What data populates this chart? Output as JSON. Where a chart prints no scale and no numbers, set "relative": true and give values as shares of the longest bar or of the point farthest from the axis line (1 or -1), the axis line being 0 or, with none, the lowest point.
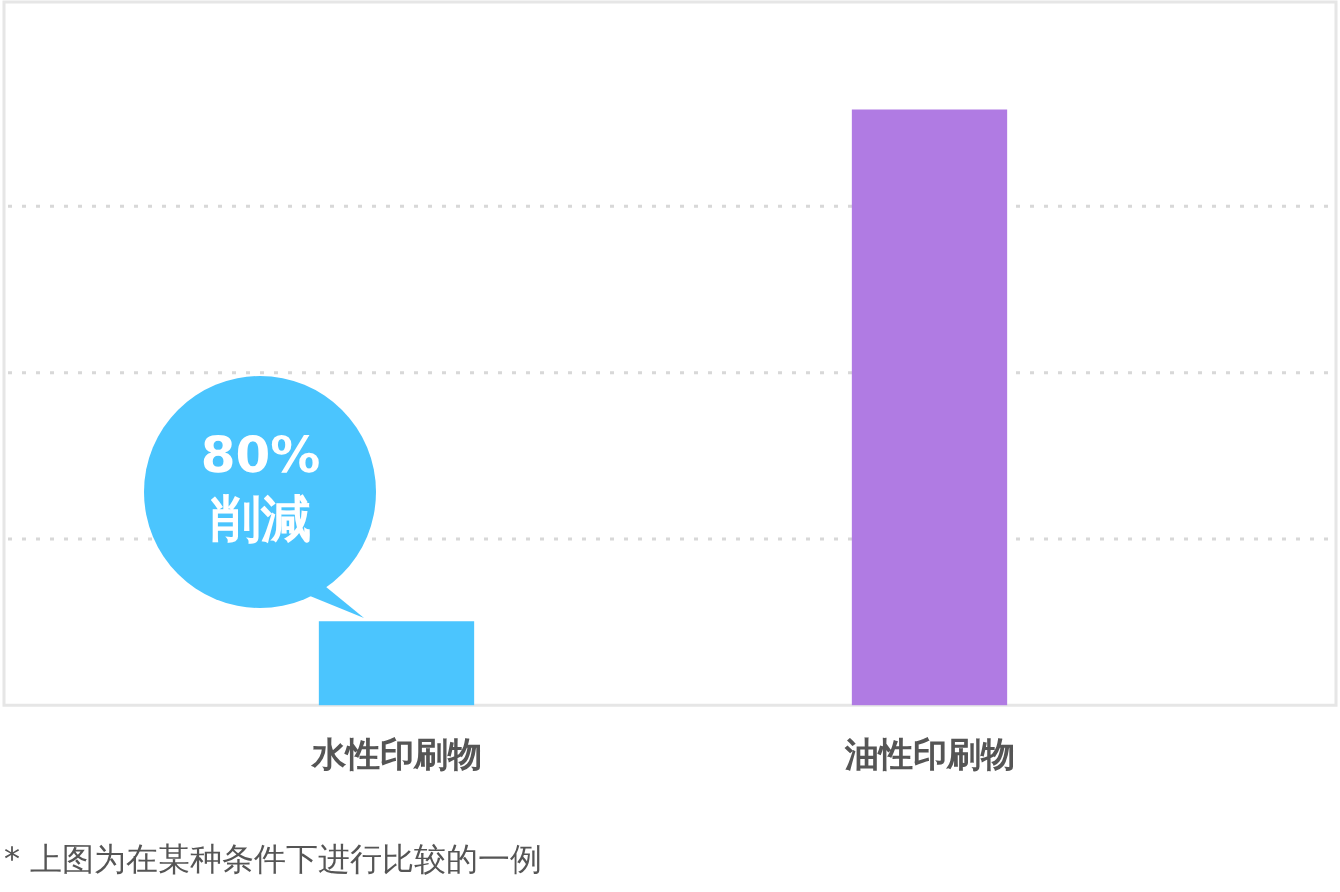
{
  "chart_data": {
    "type": "bar",
    "relative": true,
    "categories": [
      "水性印刷物",
      "油性印刷物"
    ],
    "values": [
      0.14,
      1
    ],
    "colors": [
      "#4bc5fe",
      "#b07be3"
    ],
    "grid": "y",
    "annotations": [
      {
        "text": "80%削減",
        "x": "水性印刷物",
        "y": 0.14
      },
      "* 上图为在某种条件下进行比较的一例"
    ]
  }
}
